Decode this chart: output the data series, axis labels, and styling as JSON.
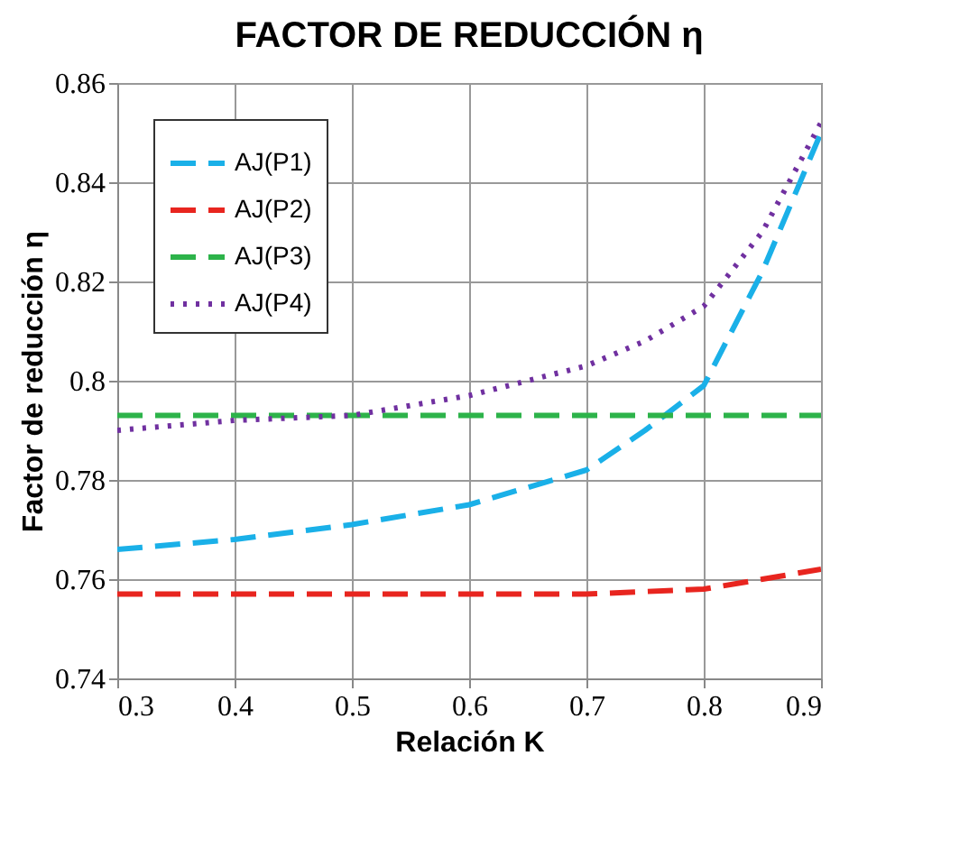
{
  "chart_data": {
    "type": "line",
    "title": "FACTOR DE REDUCCIÓN η",
    "xlabel": "Relación K",
    "ylabel": "Factor de reducción η",
    "x": [
      0.3,
      0.4,
      0.5,
      0.6,
      0.7,
      0.75,
      0.8,
      0.85,
      0.9
    ],
    "series": [
      {
        "name": "AJ(P1)",
        "color": "#1ab0e8",
        "line_style": "dashed",
        "values": [
          0.766,
          0.768,
          0.771,
          0.775,
          0.782,
          0.79,
          0.799,
          0.822,
          0.85
        ]
      },
      {
        "name": "AJ(P2)",
        "color": "#e8251f",
        "line_style": "dashed",
        "values": [
          0.757,
          0.757,
          0.757,
          0.757,
          0.757,
          0.7575,
          0.758,
          0.76,
          0.762
        ]
      },
      {
        "name": "AJ(P3)",
        "color": "#2db34a",
        "line_style": "dashed",
        "values": [
          0.793,
          0.793,
          0.793,
          0.793,
          0.793,
          0.793,
          0.793,
          0.793,
          0.793
        ]
      },
      {
        "name": "AJ(P4)",
        "color": "#7030a0",
        "line_style": "dotted",
        "values": [
          0.79,
          0.792,
          0.793,
          0.797,
          0.803,
          0.808,
          0.815,
          0.83,
          0.852
        ]
      }
    ],
    "xlim": [
      0.3,
      0.9
    ],
    "xticks": [
      0.3,
      0.4,
      0.5,
      0.6,
      0.7,
      0.8,
      0.9
    ],
    "ylim": [
      0.74,
      0.86
    ],
    "yticks": [
      0.74,
      0.76,
      0.78,
      0.8,
      0.82,
      0.84,
      0.86
    ],
    "grid": true,
    "legend": "top left",
    "marker": "none"
  }
}
